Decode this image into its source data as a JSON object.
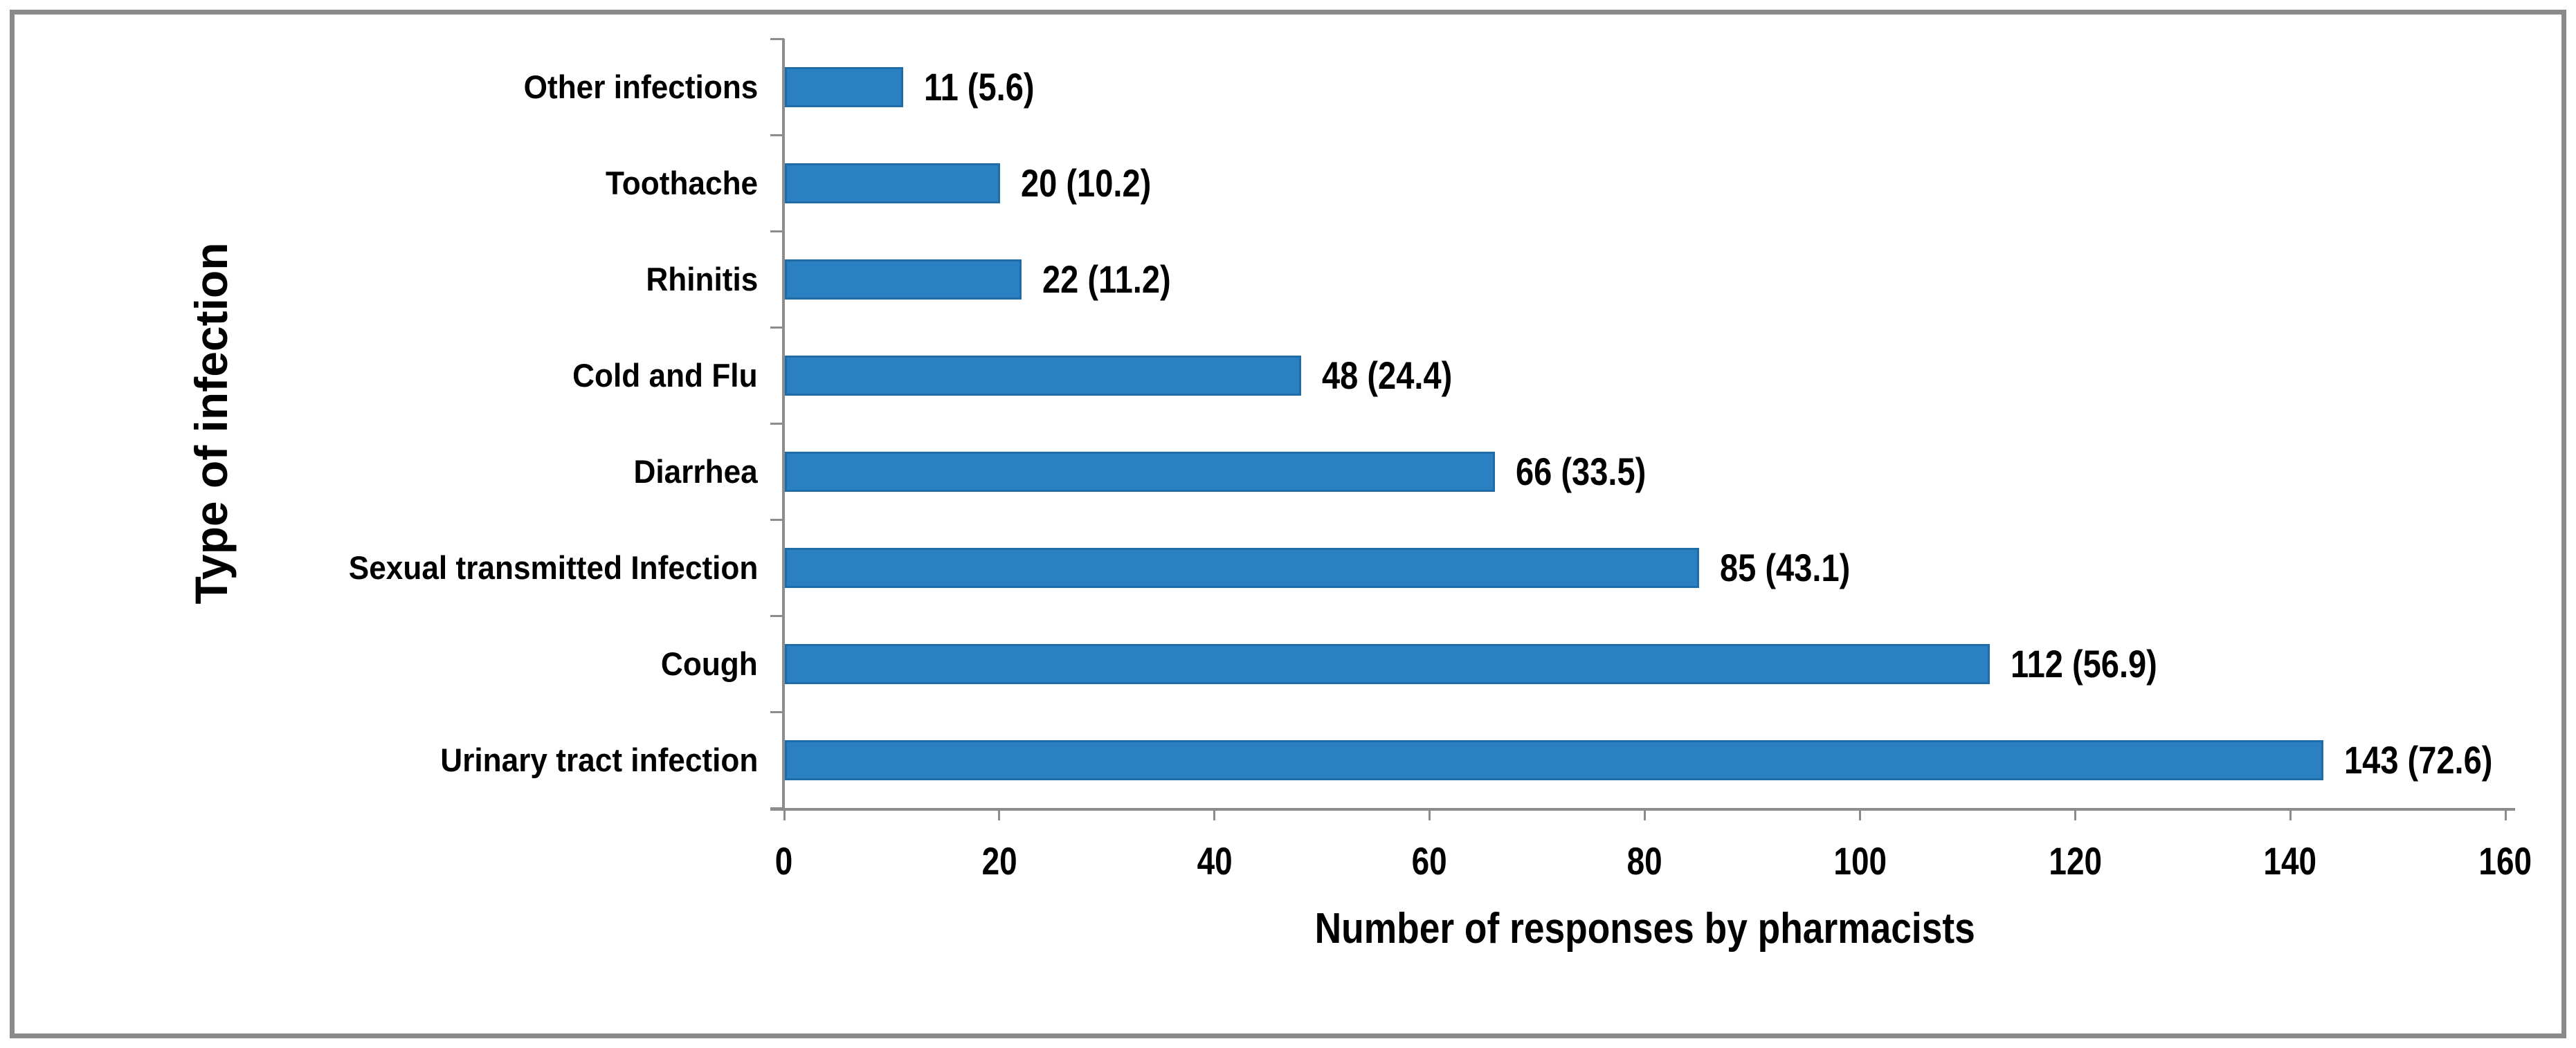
{
  "figure": {
    "kind": "horizontal-bar-chart",
    "background": "#FFFFFF",
    "border_color": "#8A8A8A"
  },
  "chart_data": {
    "type": "bar",
    "orientation": "horizontal",
    "title": "",
    "xlabel": "Number of responses by pharmacists",
    "ylabel": "Type of infection",
    "categories": [
      "Other infections",
      "Toothache",
      "Rhinitis",
      "Cold and Flu",
      "Diarrhea",
      "Sexual transmitted Infection",
      "Cough",
      "Urinary tract infection"
    ],
    "values": [
      11,
      20,
      22,
      48,
      66,
      85,
      112,
      143
    ],
    "percentages": [
      5.6,
      10.2,
      11.2,
      24.4,
      33.5,
      43.1,
      56.9,
      72.6
    ],
    "data_labels": [
      "11 (5.6)",
      "20 (10.2)",
      "22 (11.2)",
      "48 (24.4)",
      "66 (33.5)",
      "85 (43.1)",
      "112 (56.9)",
      "143 (72.6)"
    ],
    "xlim": [
      0,
      160
    ],
    "x_ticks": [
      0,
      20,
      40,
      60,
      80,
      100,
      120,
      140,
      160
    ],
    "grid": false,
    "legend": false,
    "bar_color": "#2A80C1",
    "bar_border_color": "#1E6DA8",
    "axis_color": "#8C8C8C",
    "label_color": "#000000"
  }
}
